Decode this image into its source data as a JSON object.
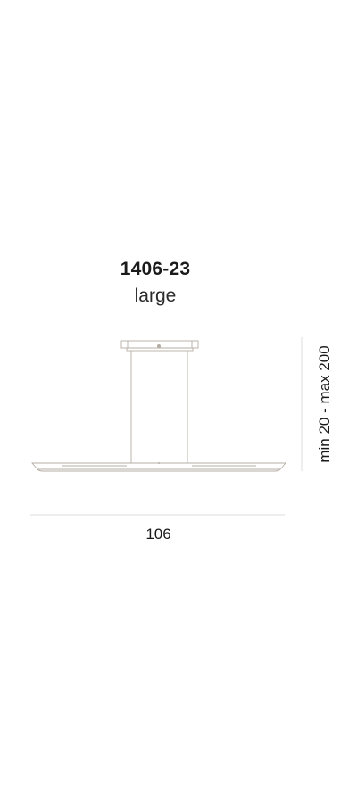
{
  "product": {
    "code": "1406-23",
    "size": "large"
  },
  "dimensions": {
    "width_label": "106",
    "height_label": "min 20 - max 200"
  },
  "colors": {
    "line": "#b5aca3",
    "dimension_line": "#dcdcdc",
    "text": "#1a1a1a"
  }
}
